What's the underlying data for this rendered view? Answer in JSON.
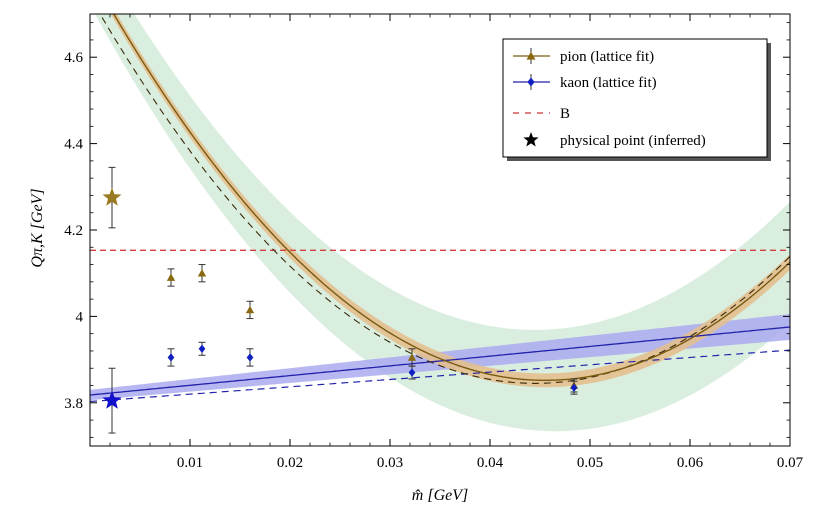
{
  "chart_data": {
    "type": "line",
    "title": "",
    "xlabel": "m̂ [GeV]",
    "ylabel": "Qπ,K [GeV]",
    "xlim": [
      0.0,
      0.07
    ],
    "ylim": [
      3.7,
      4.7
    ],
    "x_ticks": [
      0.01,
      0.02,
      0.03,
      0.04,
      0.05,
      0.06,
      0.07
    ],
    "x_tick_labels": [
      "0.01",
      "0.02",
      "0.03",
      "0.04",
      "0.05",
      "0.06",
      "0.07"
    ],
    "y_ticks": [
      3.8,
      4.0,
      4.2,
      4.4,
      4.6
    ],
    "y_tick_labels": [
      "3.8",
      "4",
      "4.2",
      "4.4",
      "4.6"
    ],
    "legend_position": "top-right",
    "legend": [
      {
        "label": "pion (lattice fit)",
        "color": "#7a5a10",
        "marker": "triangle",
        "style": "solid"
      },
      {
        "label": "kaon (lattice fit)",
        "color": "#2222aa",
        "marker": "diamond",
        "style": "solid"
      },
      {
        "label": "B",
        "color": "#cc3333",
        "marker": "none",
        "style": "dashed"
      },
      {
        "label": "physical point (inferred)",
        "color": "#000000",
        "marker": "star",
        "style": "none"
      }
    ],
    "pion_points": [
      {
        "x": 0.0081,
        "y": 4.09,
        "err": 0.02
      },
      {
        "x": 0.0112,
        "y": 4.1,
        "err": 0.02
      },
      {
        "x": 0.016,
        "y": 4.015,
        "err": 0.02
      },
      {
        "x": 0.0322,
        "y": 3.905,
        "err": 0.02
      },
      {
        "x": 0.0484,
        "y": 3.84,
        "err": 0.015
      }
    ],
    "kaon_points": [
      {
        "x": 0.0081,
        "y": 3.905,
        "err": 0.02
      },
      {
        "x": 0.0112,
        "y": 3.925,
        "err": 0.015
      },
      {
        "x": 0.016,
        "y": 3.905,
        "err": 0.02
      },
      {
        "x": 0.0322,
        "y": 3.87,
        "err": 0.015
      },
      {
        "x": 0.0484,
        "y": 3.835,
        "err": 0.015
      }
    ],
    "physical_points": [
      {
        "series": "pion",
        "x": 0.0022,
        "y": 4.275,
        "err": 0.07,
        "color": "#9a7a20"
      },
      {
        "series": "kaon",
        "x": 0.0022,
        "y": 3.805,
        "err": 0.075,
        "color": "#1111cc"
      }
    ],
    "B_value": 4.153,
    "pion_fit": {
      "a": 3.852,
      "b": 0.000456,
      "x0": 0.0455
    },
    "pion_dashed": {
      "a": 3.845,
      "b": 0.000452,
      "x0": 0.0445
    },
    "pion_band_halfwidth": [
      0.012,
      0.018
    ],
    "green_band_halfwidth": [
      0.075,
      0.14
    ],
    "kaon_fit": {
      "y0": 3.818,
      "slope": 2.25
    },
    "kaon_dashed": {
      "y0": 3.803,
      "slope": 1.7
    },
    "kaon_band_halfwidth": [
      0.012,
      0.03
    ],
    "colors": {
      "pion_line": "#7a5a10",
      "pion_marker": "#8a6a10",
      "pion_band": "#e2bf8e",
      "green_band": "#cde8d6",
      "kaon_line": "#2222aa",
      "kaon_marker": "#1020c0",
      "kaon_band": "#aaaaee",
      "b_line": "#d04040"
    }
  }
}
